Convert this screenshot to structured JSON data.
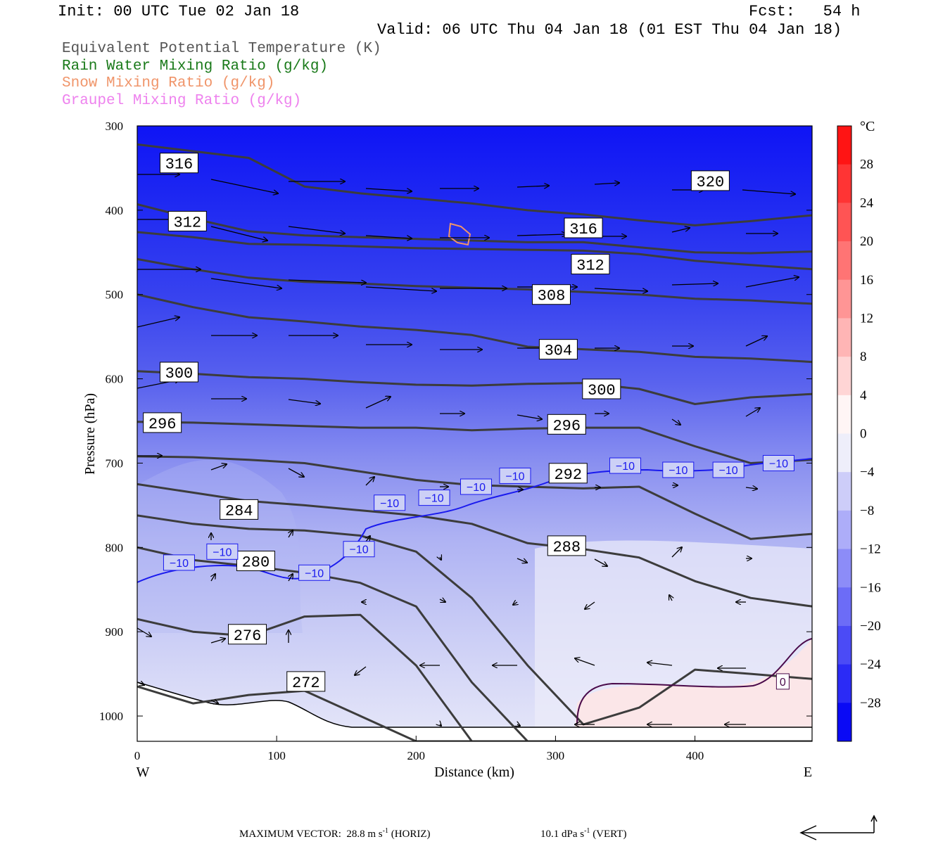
{
  "header": {
    "init": "Init: 00 UTC Tue 02 Jan 18",
    "fcst": "Fcst:   54 h",
    "valid": "Valid: 06 UTC Thu 04 Jan 18 (01 EST Thu 04 Jan 18)"
  },
  "legend": [
    {
      "text": "Equivalent Potential Temperature (K)",
      "color": "#555555"
    },
    {
      "text": "Rain Water Mixing Ratio (g/kg)",
      "color": "#1a7a1a"
    },
    {
      "text": "Snow Mixing Ratio (g/kg)",
      "color": "#f0956a"
    },
    {
      "text": "Graupel Mixing Ratio (g/kg)",
      "color": "#ee82ee"
    }
  ],
  "chart_data": {
    "type": "cross-section",
    "xlabel": "Distance (km)",
    "ylabel": "Pressure (hPa)",
    "x_ticks": [
      0,
      100,
      200,
      300,
      400
    ],
    "y_ticks": [
      300,
      400,
      500,
      600,
      700,
      800,
      900,
      1000
    ],
    "xlim": [
      0,
      484
    ],
    "ylim": [
      300,
      1030
    ],
    "west_label": "W",
    "east_label": "E",
    "colorbar": {
      "unit": "°C",
      "tick_labels": [
        "28",
        "24",
        "20",
        "16",
        "12",
        "8",
        "4",
        "0",
        "−4",
        "−8",
        "−12",
        "−16",
        "−20",
        "−24",
        "−28"
      ],
      "tick_values": [
        28,
        24,
        20,
        16,
        12,
        8,
        4,
        0,
        -4,
        -8,
        -12,
        -16,
        -20,
        -24,
        -28
      ],
      "min": -32,
      "max": 32,
      "step": 4
    },
    "theta_e_labels": [
      {
        "text": "316",
        "x": 30,
        "p": 344
      },
      {
        "text": "320",
        "x": 411,
        "p": 365
      },
      {
        "text": "312",
        "x": 36,
        "p": 413
      },
      {
        "text": "316",
        "x": 320,
        "p": 421
      },
      {
        "text": "312",
        "x": 325,
        "p": 464
      },
      {
        "text": "308",
        "x": 297,
        "p": 500
      },
      {
        "text": "304",
        "x": 302,
        "p": 565
      },
      {
        "text": "300",
        "x": 30,
        "p": 592
      },
      {
        "text": "300",
        "x": 333,
        "p": 612
      },
      {
        "text": "296",
        "x": 18,
        "p": 652
      },
      {
        "text": "296",
        "x": 308,
        "p": 654
      },
      {
        "text": "292",
        "x": 309,
        "p": 712
      },
      {
        "text": "284",
        "x": 73,
        "p": 755
      },
      {
        "text": "280",
        "x": 85,
        "p": 816
      },
      {
        "text": "288",
        "x": 308,
        "p": 798
      },
      {
        "text": "276",
        "x": 79,
        "p": 903
      },
      {
        "text": "272",
        "x": 121,
        "p": 959
      }
    ],
    "temp_labels": [
      {
        "text": "−10",
        "x": 30,
        "p": 818
      },
      {
        "text": "−10",
        "x": 61,
        "p": 805
      },
      {
        "text": "−10",
        "x": 127,
        "p": 830
      },
      {
        "text": "−10",
        "x": 159,
        "p": 802
      },
      {
        "text": "−10",
        "x": 181,
        "p": 747
      },
      {
        "text": "−10",
        "x": 213,
        "p": 741
      },
      {
        "text": "−10",
        "x": 243,
        "p": 728
      },
      {
        "text": "−10",
        "x": 271,
        "p": 715
      },
      {
        "text": "−10",
        "x": 350,
        "p": 703
      },
      {
        "text": "−10",
        "x": 388,
        "p": 708
      },
      {
        "text": "−10",
        "x": 424,
        "p": 708
      },
      {
        "text": "−10",
        "x": 460,
        "p": 700
      },
      {
        "text": "0",
        "x": 463,
        "p": 959
      }
    ],
    "vectors": {
      "max_label": "MAXIMUM VECTOR:  28.8 m s",
      "horiz_unit": "(HORIZ)",
      "vert_value": "10.1 dPa s",
      "vert_unit": "(VERT)",
      "exponent": "-1"
    }
  }
}
